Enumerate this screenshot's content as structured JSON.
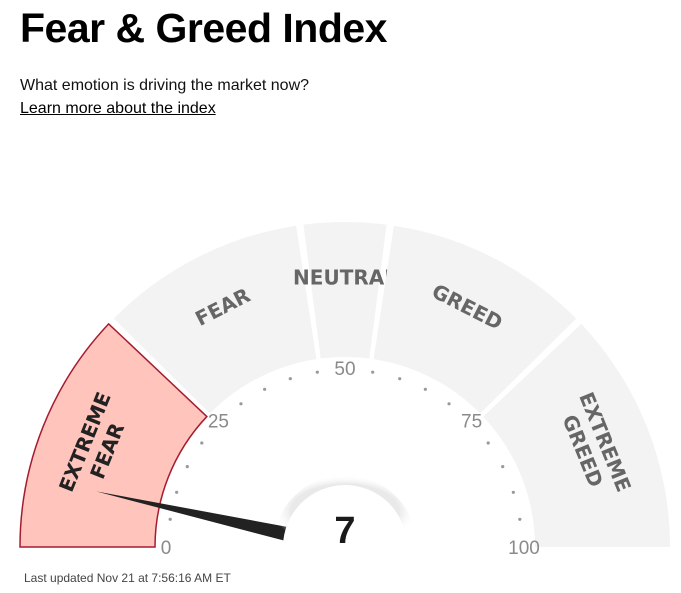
{
  "header": {
    "title": "Fear & Greed Index",
    "subtitle": "What emotion is driving the market now?",
    "learn_more": "Learn more about the index"
  },
  "gauge": {
    "value": 7,
    "value_label": "7",
    "active_segment": "extreme-fear",
    "segments": [
      {
        "key": "extreme-fear",
        "lines": [
          "EXTREME",
          "FEAR"
        ]
      },
      {
        "key": "fear",
        "lines": [
          "FEAR"
        ]
      },
      {
        "key": "neutral",
        "lines": [
          "NEUTRAL"
        ]
      },
      {
        "key": "greed",
        "lines": [
          "GREED"
        ]
      },
      {
        "key": "extreme-greed",
        "lines": [
          "EXTREME",
          "GREED"
        ]
      }
    ],
    "ticks": [
      "0",
      "25",
      "50",
      "75",
      "100"
    ],
    "colors": {
      "segment": "#f3f3f3",
      "active_fill": "#ffc5bd",
      "active_stroke": "#a51c30",
      "label": "#666666",
      "active_label": "#222222",
      "needle": "#222222",
      "dots": "#999999"
    }
  },
  "footer": {
    "last_updated": "Last updated Nov 21 at 7:56:16 AM ET"
  }
}
